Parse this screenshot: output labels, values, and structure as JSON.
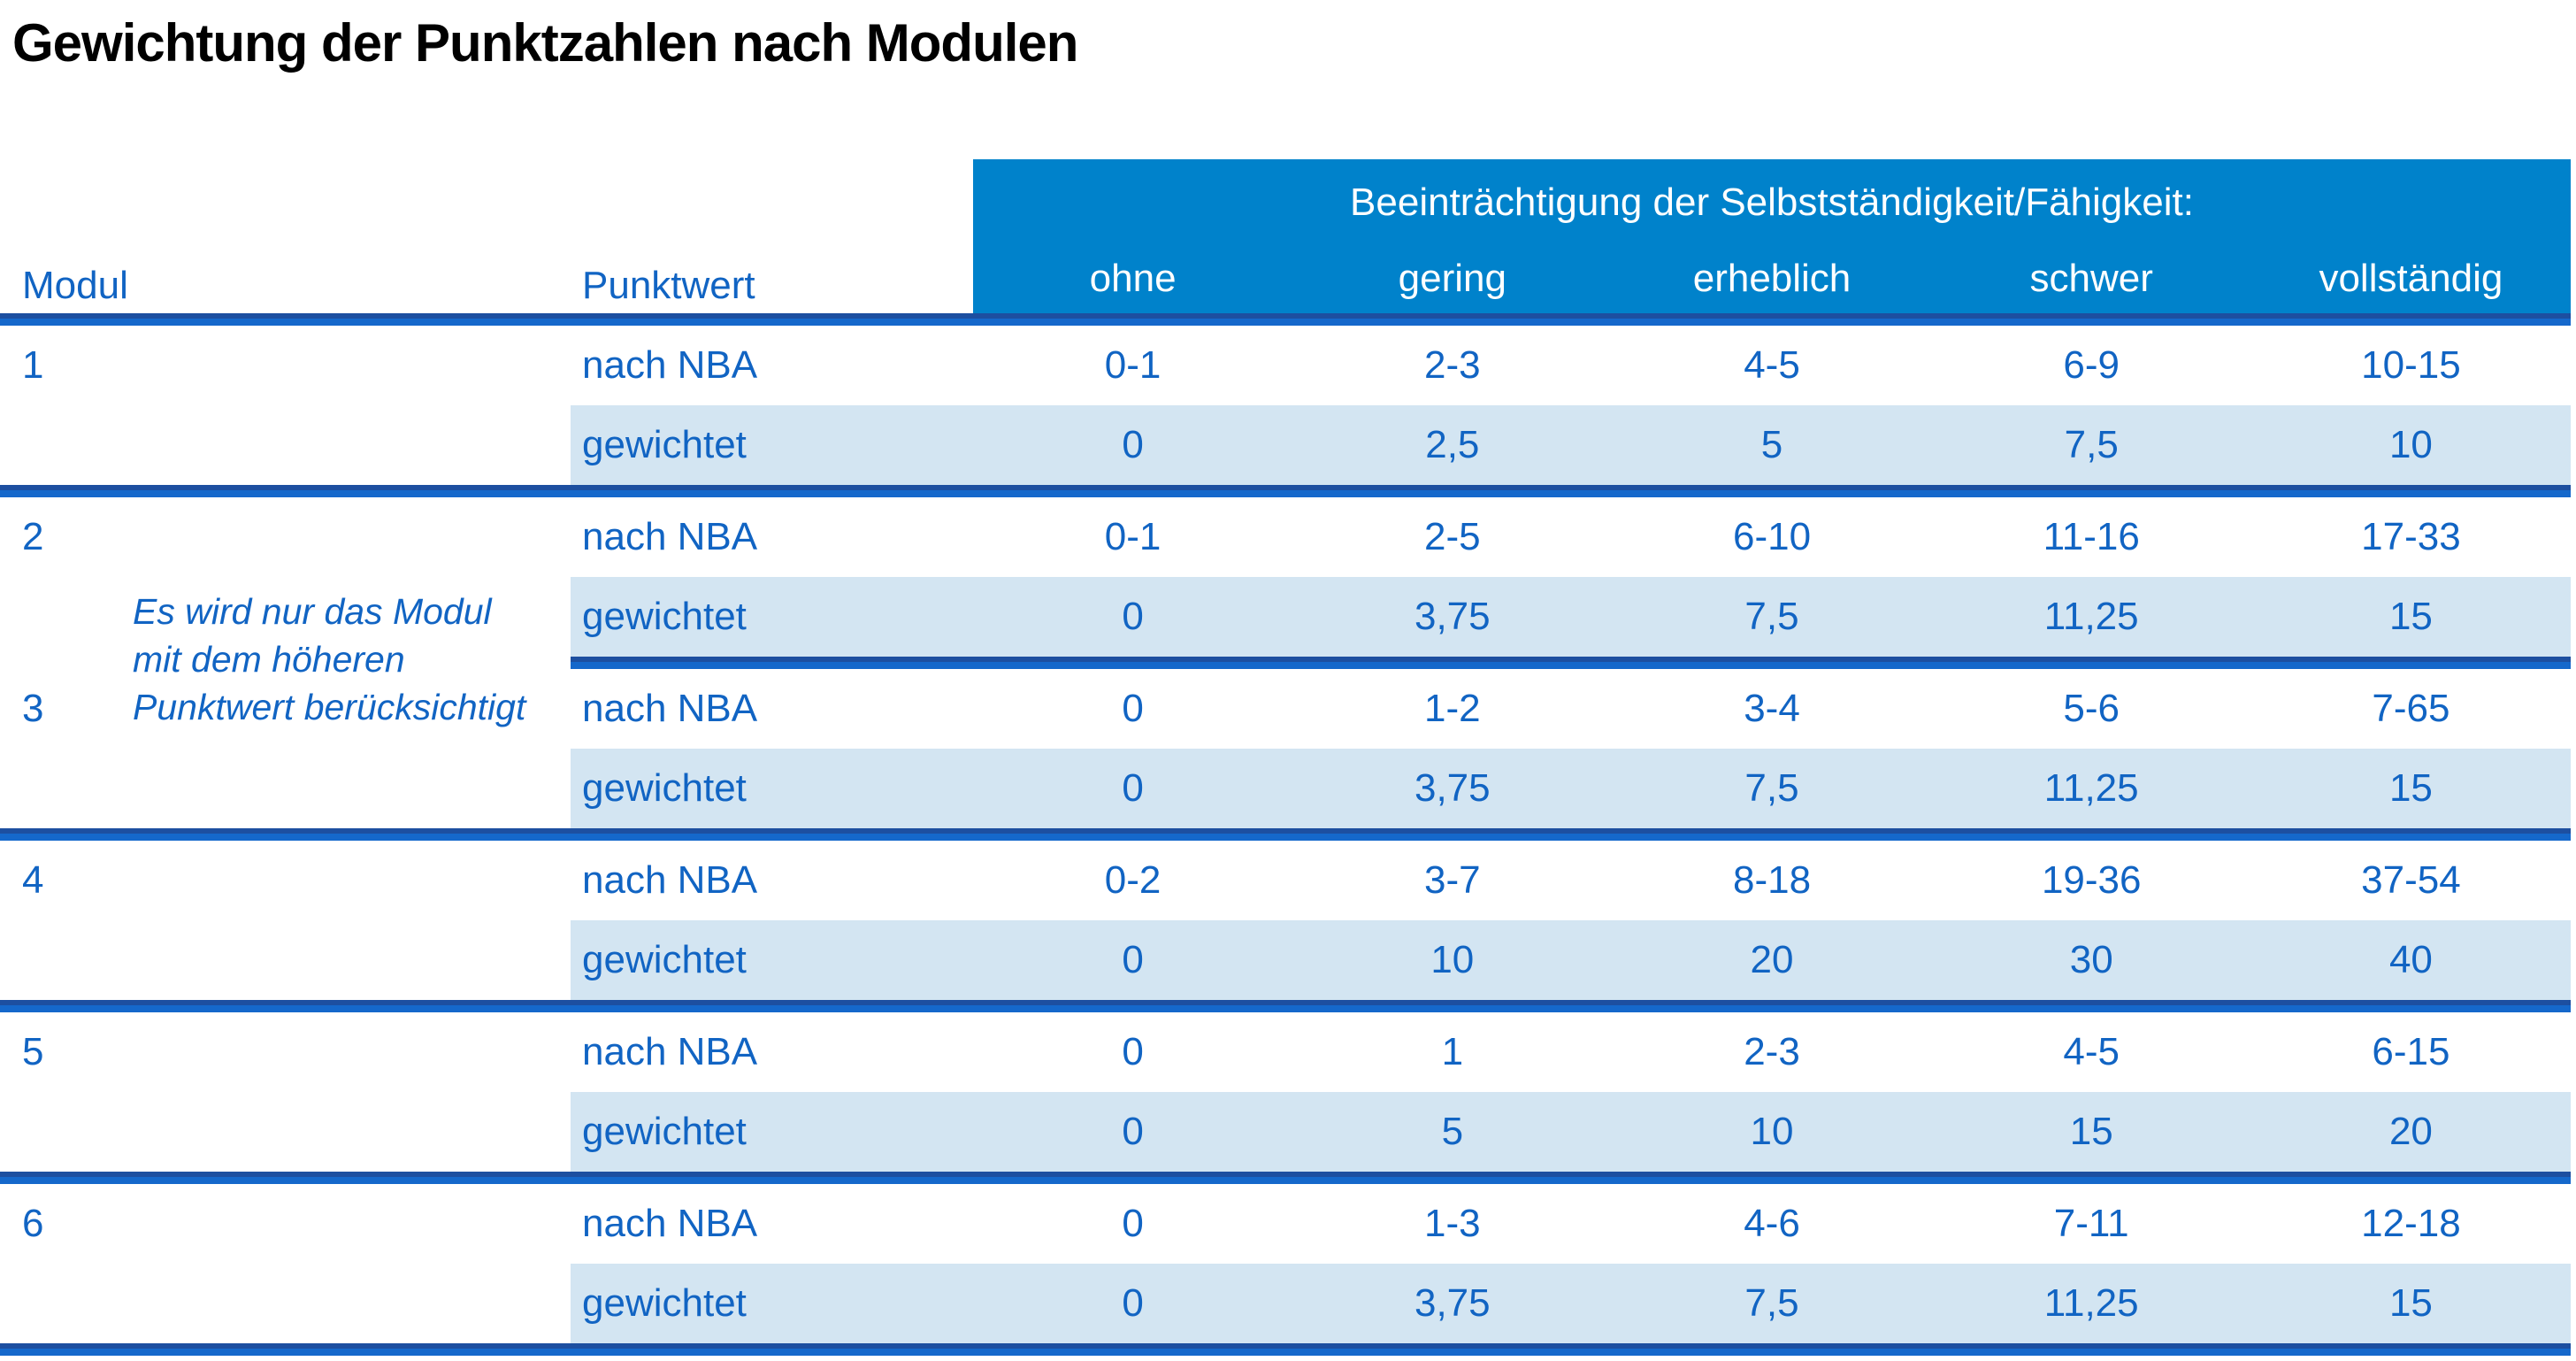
{
  "title": "Gewichtung der Punktzahlen nach Modulen",
  "table": {
    "corner": {
      "modul": "Modul",
      "punktwert": "Punktwert"
    },
    "group_header": "Beeinträchtigung der Selbstständigkeit/Fähigkeit:",
    "severity_columns": [
      "ohne",
      "gering",
      "erheblich",
      "schwer",
      "vollständig"
    ],
    "row_labels": {
      "nba": "nach NBA",
      "weighted": "gewichtet"
    },
    "note": "Es wird nur das Modul mit dem höheren Punktwert berücksichtigt",
    "note_lines": [
      "Es wird nur das Modul",
      "mit dem höheren",
      "Punktwert berücksichtigt"
    ],
    "modules": [
      {
        "id": "1",
        "nba": [
          "0-1",
          "2-3",
          "4-5",
          "6-9",
          "10-15"
        ],
        "weighted": [
          "0",
          "2,5",
          "5",
          "7,5",
          "10"
        ]
      },
      {
        "id": "2",
        "nba": [
          "0-1",
          "2-5",
          "6-10",
          "11-16",
          "17-33"
        ],
        "weighted": [
          "0",
          "3,75",
          "7,5",
          "11,25",
          "15"
        ]
      },
      {
        "id": "3",
        "nba": [
          "0",
          "1-2",
          "3-4",
          "5-6",
          "7-65"
        ],
        "weighted": [
          "0",
          "3,75",
          "7,5",
          "11,25",
          "15"
        ]
      },
      {
        "id": "4",
        "nba": [
          "0-2",
          "3-7",
          "8-18",
          "19-36",
          "37-54"
        ],
        "weighted": [
          "0",
          "10",
          "20",
          "30",
          "40"
        ]
      },
      {
        "id": "5",
        "nba": [
          "0",
          "1",
          "2-3",
          "4-5",
          "6-15"
        ],
        "weighted": [
          "0",
          "5",
          "10",
          "15",
          "20"
        ]
      },
      {
        "id": "6",
        "nba": [
          "0",
          "1-3",
          "4-6",
          "7-11",
          "12-18"
        ],
        "weighted": [
          "0",
          "3,75",
          "7,5",
          "11,25",
          "15"
        ]
      }
    ]
  },
  "colors": {
    "header_blue": "#0082CB",
    "row_blue": "#D3E5F2",
    "text_blue": "#1164C3",
    "divider_dark": "#1D4FA0",
    "divider_royal": "#1568CB",
    "title_color": "#000000"
  }
}
